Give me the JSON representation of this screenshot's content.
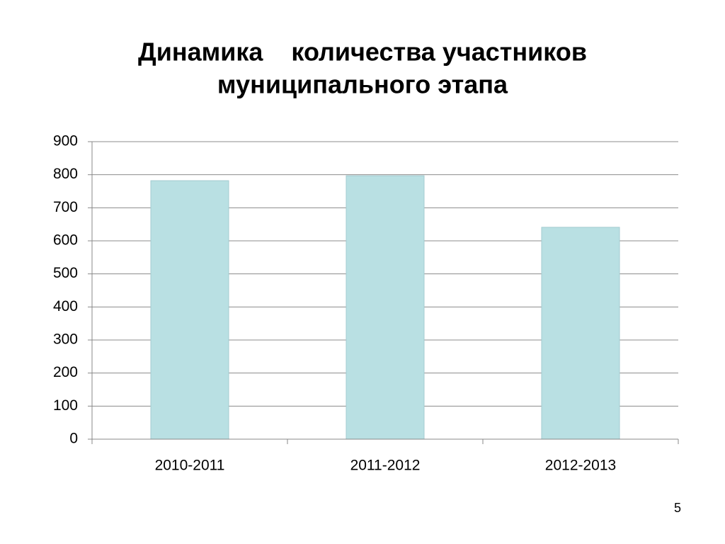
{
  "chart_data": {
    "type": "bar",
    "title": [
      "Динамика    количества участников",
      "муниципального этапа"
    ],
    "categories": [
      "2010-2011",
      "2011-2012",
      "2012-2013"
    ],
    "values": [
      782,
      797,
      641
    ],
    "color": "#b9e0e3",
    "ylim": [
      0,
      900
    ],
    "yticks": [
      0,
      100,
      200,
      300,
      400,
      500,
      600,
      700,
      800,
      900
    ],
    "grid": true
  },
  "slide_number": "5"
}
